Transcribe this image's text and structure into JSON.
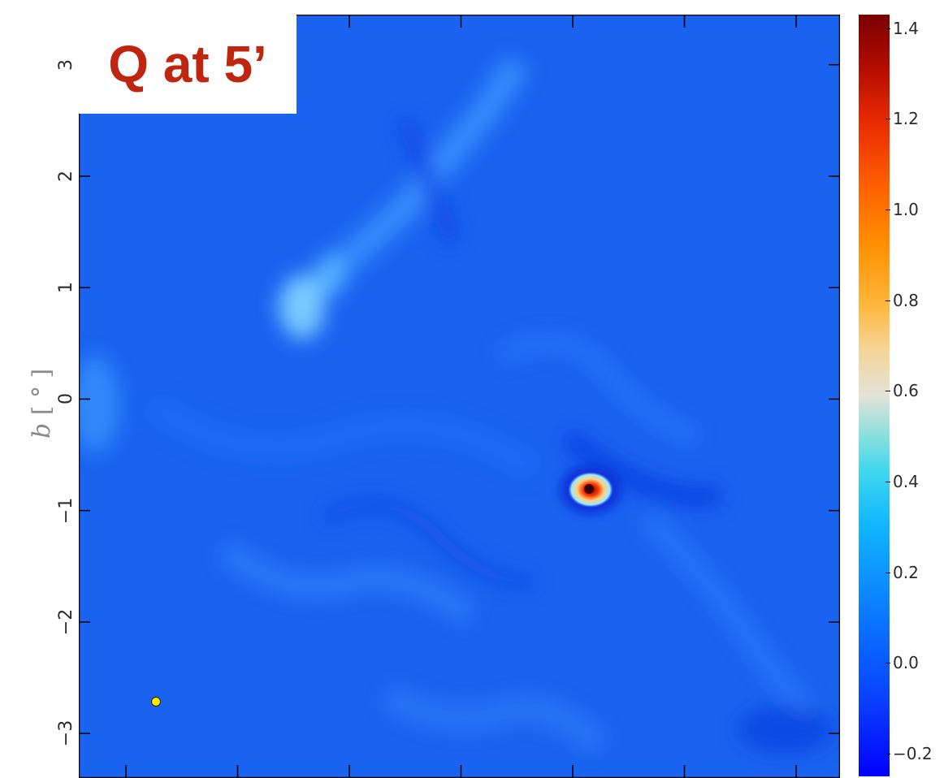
{
  "figure": {
    "title": "Q at 5’",
    "ylabel_var": "b",
    "ylabel_unit": "[ ° ]",
    "colors": {
      "background": "#1a63f0",
      "title_text": "#c0250f",
      "marker": "#ffee00"
    }
  },
  "y_axis": {
    "range": [
      -3.4,
      3.45
    ],
    "ticks": [
      {
        "value": 3,
        "label": "3"
      },
      {
        "value": 2,
        "label": "2"
      },
      {
        "value": 1,
        "label": "1"
      },
      {
        "value": 0,
        "label": "0"
      },
      {
        "value": -1,
        "label": "−1"
      },
      {
        "value": -2,
        "label": "−2"
      },
      {
        "value": -3,
        "label": "−3"
      }
    ]
  },
  "x_axis": {
    "tick_count": 7
  },
  "colorbar": {
    "range": [
      -0.25,
      1.43
    ],
    "ticks": [
      {
        "value": 1.4,
        "label": "1.4"
      },
      {
        "value": 1.2,
        "label": "1.2"
      },
      {
        "value": 1.0,
        "label": "1.0"
      },
      {
        "value": 0.8,
        "label": "0.8"
      },
      {
        "value": 0.6,
        "label": "0.6"
      },
      {
        "value": 0.4,
        "label": "0.4"
      },
      {
        "value": 0.2,
        "label": "0.2"
      },
      {
        "value": 0.0,
        "label": "0.0"
      },
      {
        "value": -0.2,
        "label": "−0.2"
      }
    ]
  }
}
